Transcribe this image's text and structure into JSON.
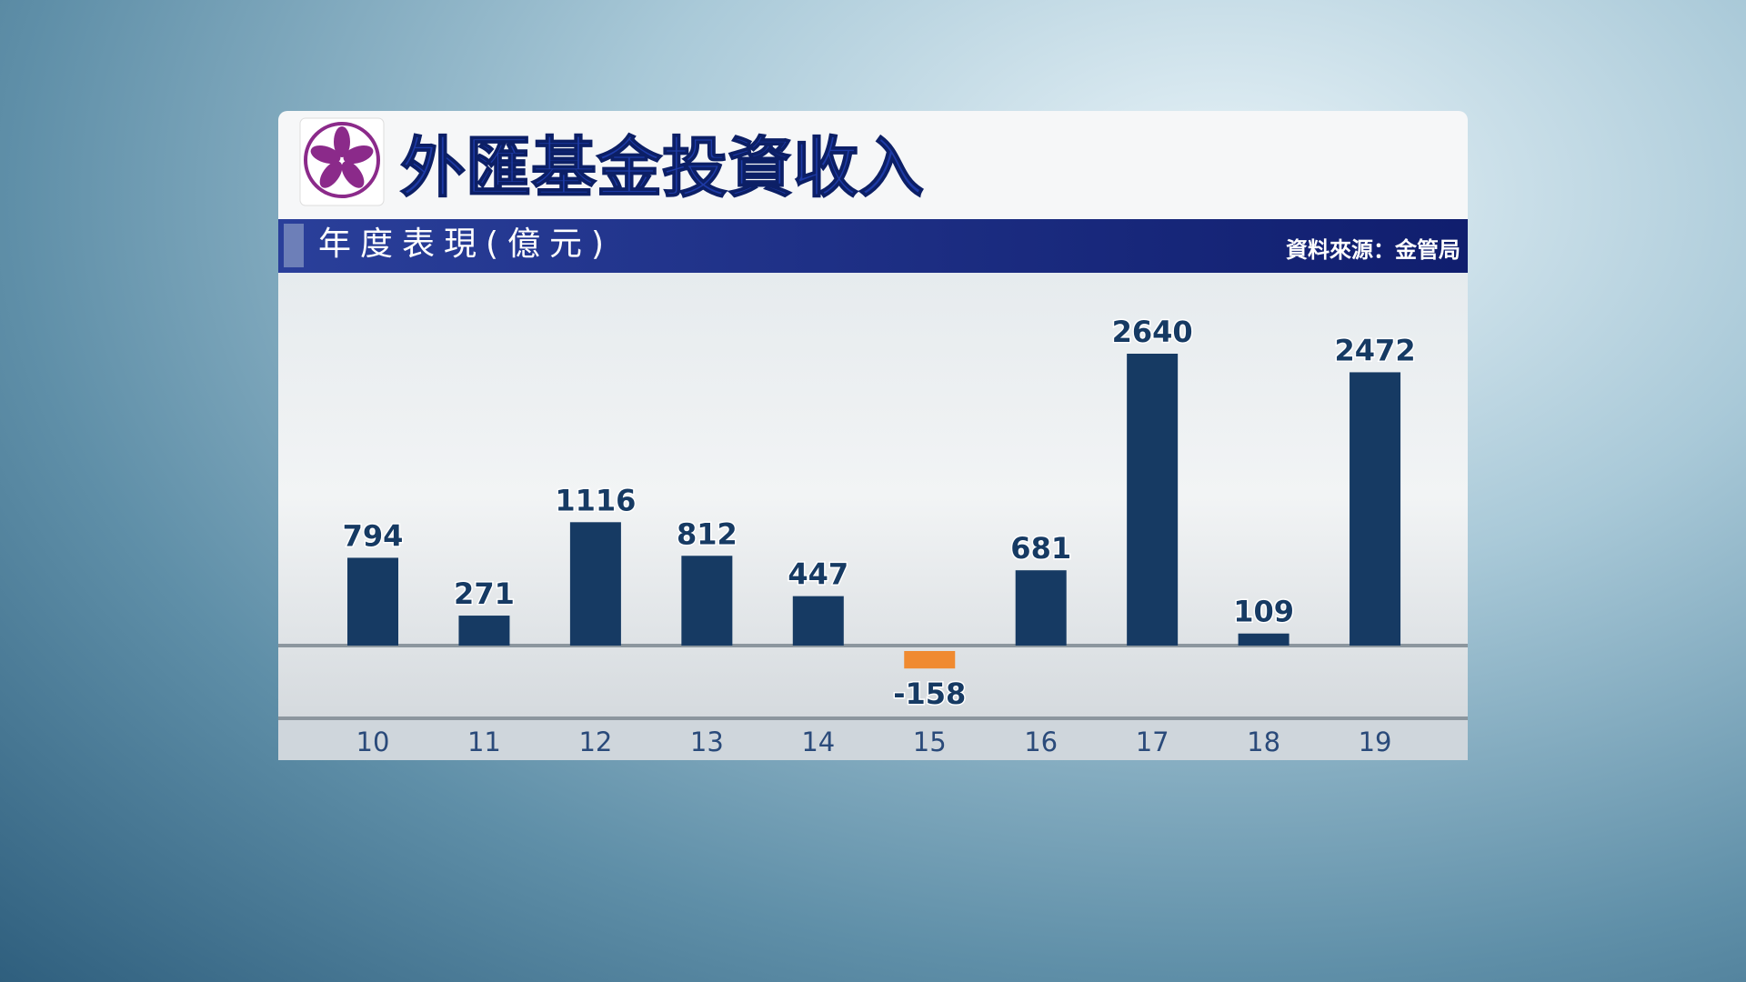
{
  "chart_data": {
    "type": "bar",
    "title": "外匯基金投資收入",
    "subtitle": "年度表現(億元)",
    "source": "資料來源：金管局",
    "categories": [
      "10",
      "11",
      "12",
      "13",
      "14",
      "15",
      "16",
      "17",
      "18",
      "19"
    ],
    "values": [
      794,
      271,
      1116,
      812,
      447,
      -158,
      681,
      2640,
      109,
      2472
    ],
    "color": "#163a63",
    "negative_color": "#f08a30"
  }
}
